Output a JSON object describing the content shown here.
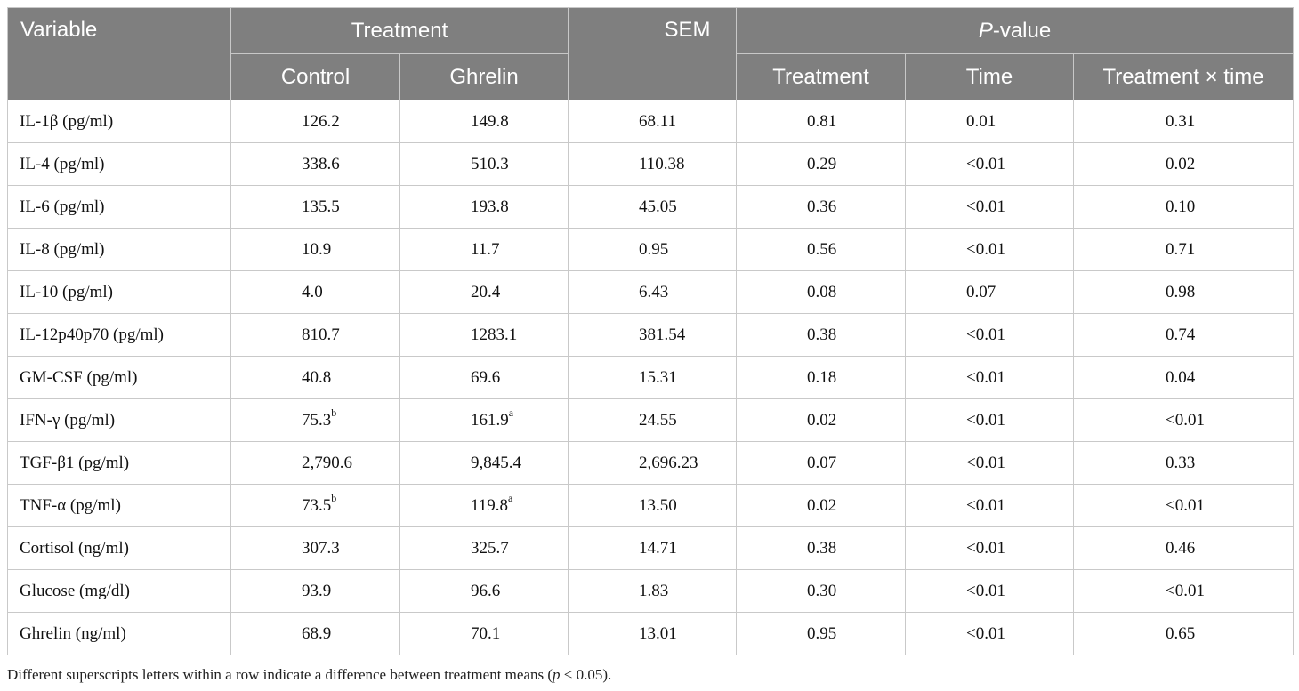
{
  "header": {
    "variable": "Variable",
    "treatment": "Treatment",
    "sem": "SEM",
    "pvalue_p": "P",
    "pvalue_rest": "-value",
    "control": "Control",
    "ghrelin": "Ghrelin",
    "p_treatment": "Treatment",
    "p_time": "Time",
    "p_interaction": "Treatment × time"
  },
  "rows": [
    {
      "variable": "IL-1β (pg/ml)",
      "control": "126.2",
      "control_sup": "",
      "ghrelin": "149.8",
      "ghrelin_sup": "",
      "sem": "68.11",
      "p_treatment": "0.81",
      "p_time": "0.01",
      "p_interaction": "0.31"
    },
    {
      "variable": "IL-4 (pg/ml)",
      "control": "338.6",
      "control_sup": "",
      "ghrelin": "510.3",
      "ghrelin_sup": "",
      "sem": "110.38",
      "p_treatment": "0.29",
      "p_time": "<0.01",
      "p_interaction": "0.02"
    },
    {
      "variable": "IL-6 (pg/ml)",
      "control": "135.5",
      "control_sup": "",
      "ghrelin": "193.8",
      "ghrelin_sup": "",
      "sem": "45.05",
      "p_treatment": "0.36",
      "p_time": "<0.01",
      "p_interaction": "0.10"
    },
    {
      "variable": "IL-8 (pg/ml)",
      "control": "10.9",
      "control_sup": "",
      "ghrelin": "11.7",
      "ghrelin_sup": "",
      "sem": "0.95",
      "p_treatment": "0.56",
      "p_time": "<0.01",
      "p_interaction": "0.71"
    },
    {
      "variable": "IL-10 (pg/ml)",
      "control": "4.0",
      "control_sup": "",
      "ghrelin": "20.4",
      "ghrelin_sup": "",
      "sem": "6.43",
      "p_treatment": "0.08",
      "p_time": "0.07",
      "p_interaction": "0.98"
    },
    {
      "variable": "IL-12p40p70 (pg/ml)",
      "control": "810.7",
      "control_sup": "",
      "ghrelin": "1283.1",
      "ghrelin_sup": "",
      "sem": "381.54",
      "p_treatment": "0.38",
      "p_time": "<0.01",
      "p_interaction": "0.74"
    },
    {
      "variable": "GM-CSF (pg/ml)",
      "control": "40.8",
      "control_sup": "",
      "ghrelin": "69.6",
      "ghrelin_sup": "",
      "sem": "15.31",
      "p_treatment": "0.18",
      "p_time": "<0.01",
      "p_interaction": "0.04"
    },
    {
      "variable": "IFN-γ (pg/ml)",
      "control": "75.3",
      "control_sup": "b",
      "ghrelin": "161.9",
      "ghrelin_sup": "a",
      "sem": "24.55",
      "p_treatment": "0.02",
      "p_time": "<0.01",
      "p_interaction": "<0.01"
    },
    {
      "variable": "TGF-β1 (pg/ml)",
      "control": "2,790.6",
      "control_sup": "",
      "ghrelin": "9,845.4",
      "ghrelin_sup": "",
      "sem": "2,696.23",
      "p_treatment": "0.07",
      "p_time": "<0.01",
      "p_interaction": "0.33"
    },
    {
      "variable": "TNF-α (pg/ml)",
      "control": "73.5",
      "control_sup": "b",
      "ghrelin": "119.8",
      "ghrelin_sup": "a",
      "sem": "13.50",
      "p_treatment": "0.02",
      "p_time": "<0.01",
      "p_interaction": "<0.01"
    },
    {
      "variable": "Cortisol (ng/ml)",
      "control": "307.3",
      "control_sup": "",
      "ghrelin": "325.7",
      "ghrelin_sup": "",
      "sem": "14.71",
      "p_treatment": "0.38",
      "p_time": "<0.01",
      "p_interaction": "0.46"
    },
    {
      "variable": "Glucose (mg/dl)",
      "control": "93.9",
      "control_sup": "",
      "ghrelin": "96.6",
      "ghrelin_sup": "",
      "sem": "1.83",
      "p_treatment": "0.30",
      "p_time": "<0.01",
      "p_interaction": "<0.01"
    },
    {
      "variable": "Ghrelin (ng/ml)",
      "control": "68.9",
      "control_sup": "",
      "ghrelin": "70.1",
      "ghrelin_sup": "",
      "sem": "13.01",
      "p_treatment": "0.95",
      "p_time": "<0.01",
      "p_interaction": "0.65"
    }
  ],
  "footnote": {
    "before": "Different superscripts letters within a row indicate a difference between treatment means (",
    "p": "p",
    "after": " < 0.05)."
  },
  "colors": {
    "header_bg": "#7f7f7f",
    "header_text": "#ffffff",
    "grid": "#c9c9c9"
  }
}
